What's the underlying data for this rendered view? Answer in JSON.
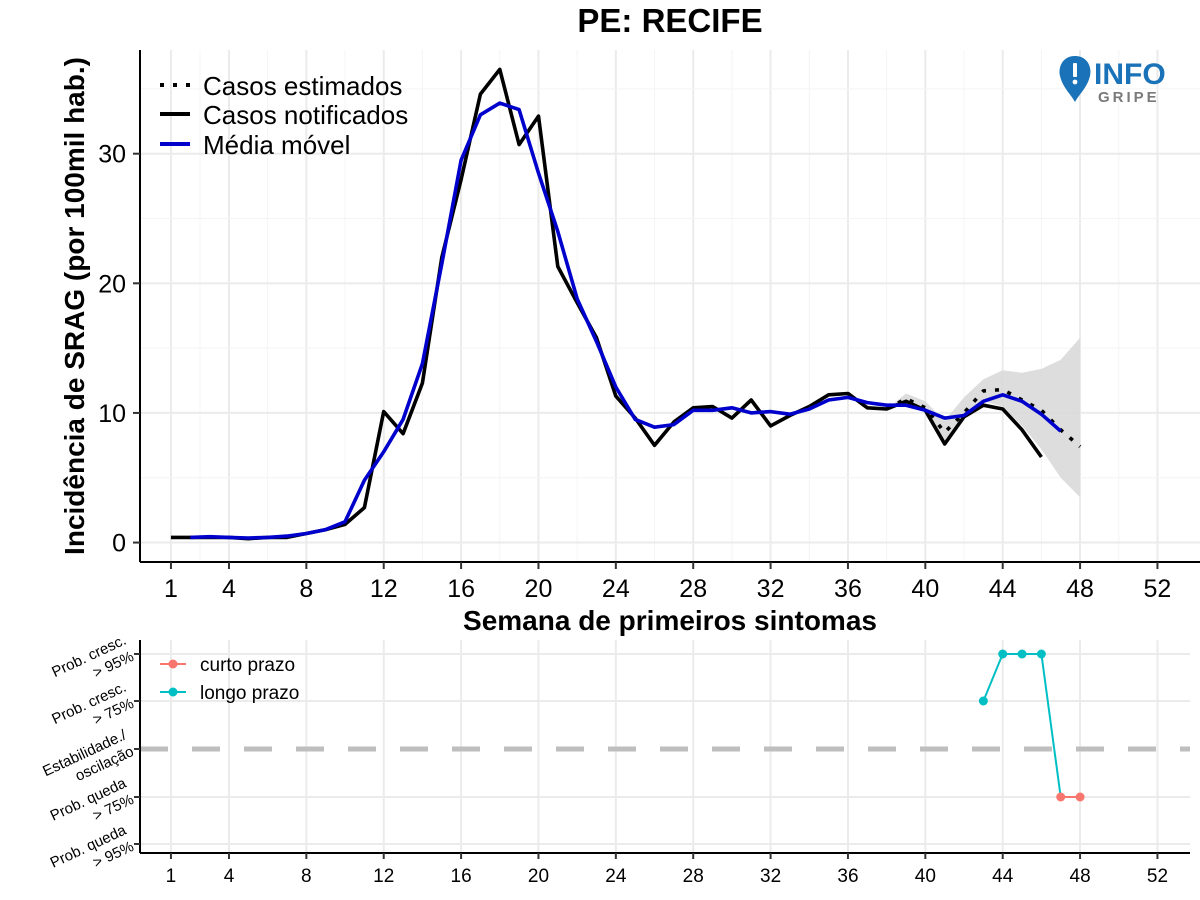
{
  "logo": {
    "info": "INFO",
    "gripe": "GRIPE",
    "colors": {
      "info": "#1a73b8",
      "gripe": "#7a7a7a"
    }
  },
  "chart_data": [
    {
      "type": "line",
      "title": "PE: RECIFE",
      "xlabel": "Semana de primeiros sintomas",
      "ylabel": "Incidência de SRAG (por 100mil hab.)",
      "xlim": [
        -0.6,
        54.2
      ],
      "ylim": [
        -1.5,
        38
      ],
      "x_ticks": [
        1,
        4,
        8,
        12,
        16,
        20,
        24,
        28,
        32,
        36,
        40,
        44,
        48,
        52
      ],
      "x_tick_labels": [
        "1",
        "4",
        "8",
        "12",
        "16",
        "20",
        "24",
        "28",
        "32",
        "36",
        "40",
        "44",
        "48",
        "52"
      ],
      "y_ticks": [
        0,
        10,
        20,
        30
      ],
      "y_tick_labels": [
        "0",
        "10",
        "20",
        "30"
      ],
      "grid": true,
      "legend_position": "top-left",
      "colors": {
        "notified": "#000000",
        "estimated": "#000000",
        "moving_average": "#0000cc",
        "band": "#d9d9d9",
        "grid": "#ebebeb"
      },
      "series": [
        {
          "name": "Casos notificados",
          "style": "solid",
          "x": [
            1,
            2,
            3,
            4,
            5,
            6,
            7,
            8,
            9,
            10,
            11,
            12,
            13,
            14,
            15,
            16,
            17,
            18,
            19,
            20,
            21,
            22,
            23,
            24,
            25,
            26,
            27,
            28,
            29,
            30,
            31,
            32,
            33,
            34,
            35,
            36,
            37,
            38,
            39,
            40,
            41,
            42,
            43,
            44,
            45,
            46
          ],
          "values": [
            0.4,
            0.4,
            0.4,
            0.4,
            0.3,
            0.4,
            0.4,
            0.7,
            1.0,
            1.4,
            2.7,
            10.1,
            8.4,
            12.3,
            22.0,
            28.0,
            34.6,
            36.5,
            30.7,
            32.9,
            21.3,
            18.5,
            15.8,
            11.3,
            9.6,
            7.5,
            9.3,
            10.4,
            10.5,
            9.6,
            11.0,
            9.0,
            9.8,
            10.5,
            11.4,
            11.5,
            10.4,
            10.3,
            10.9,
            10.2,
            7.6,
            9.7,
            10.6,
            10.3,
            8.7,
            6.6
          ]
        },
        {
          "name": "Casos estimados",
          "style": "dotted",
          "x": [
            38,
            39,
            40,
            41,
            42,
            43,
            44,
            45,
            46,
            47,
            48
          ],
          "values": [
            10.3,
            11.1,
            10.4,
            8.5,
            10.0,
            11.7,
            11.8,
            11.0,
            10.2,
            8.7,
            7.4
          ]
        },
        {
          "name": "Média móvel",
          "style": "solid",
          "x": [
            2,
            3,
            4,
            5,
            6,
            7,
            8,
            9,
            10,
            11,
            12,
            13,
            14,
            15,
            16,
            17,
            18,
            19,
            20,
            21,
            22,
            23,
            24,
            25,
            26,
            27,
            28,
            29,
            30,
            31,
            32,
            33,
            34,
            35,
            36,
            37,
            38,
            39,
            40,
            41,
            42,
            43,
            44,
            45,
            46,
            47
          ],
          "values": [
            0.4,
            0.45,
            0.4,
            0.35,
            0.4,
            0.5,
            0.7,
            1.0,
            1.6,
            4.8,
            7.0,
            9.5,
            13.8,
            21.5,
            29.5,
            33.0,
            33.9,
            33.4,
            28.5,
            24.0,
            18.8,
            15.5,
            12.0,
            9.5,
            8.9,
            9.1,
            10.2,
            10.2,
            10.4,
            10.0,
            10.1,
            9.9,
            10.3,
            11.0,
            11.2,
            10.8,
            10.6,
            10.6,
            10.2,
            9.6,
            9.8,
            10.9,
            11.4,
            10.9,
            9.9,
            8.6
          ]
        }
      ],
      "band": {
        "name": "Intervalo de confiança",
        "x": [
          38,
          39,
          40,
          41,
          42,
          43,
          44,
          45,
          46,
          47,
          48
        ],
        "lower": [
          10.3,
          10.8,
          10.2,
          7.6,
          9.8,
          10.9,
          10.5,
          9.0,
          7.2,
          5.0,
          3.5
        ],
        "upper": [
          10.3,
          11.5,
          10.9,
          9.4,
          11.2,
          12.6,
          13.3,
          13.1,
          13.4,
          14.1,
          15.8
        ]
      }
    },
    {
      "type": "line",
      "x_ticks": [
        1,
        4,
        8,
        12,
        16,
        20,
        24,
        28,
        32,
        36,
        40,
        44,
        48,
        52
      ],
      "x_tick_labels": [
        "1",
        "4",
        "8",
        "12",
        "16",
        "20",
        "24",
        "28",
        "32",
        "36",
        "40",
        "44",
        "48",
        "52"
      ],
      "categories": [
        {
          "lines": [
            "Prob. cresc.",
            "> 95%"
          ],
          "level": 2
        },
        {
          "lines": [
            "Prob. cresc.",
            "> 75%"
          ],
          "level": 1
        },
        {
          "lines": [
            "Estabilidade./",
            "oscilação"
          ],
          "level": 0
        },
        {
          "lines": [
            "Prob. queda",
            "> 75%"
          ],
          "level": -1
        },
        {
          "lines": [
            "Prob. queda",
            "> 95%"
          ],
          "level": -2
        }
      ],
      "series": [
        {
          "name": "curto prazo",
          "color": "#f8766d",
          "x": [
            47,
            48
          ],
          "values": [
            -1,
            -1
          ]
        },
        {
          "name": "longo prazo",
          "color": "#00bfc4",
          "x": [
            43,
            44,
            45,
            46,
            47
          ],
          "values": [
            1,
            2,
            2,
            2,
            -1
          ]
        }
      ],
      "grid": true,
      "legend_position": "top-left",
      "reference_line": {
        "level": 0,
        "style": "dashed",
        "color": "#bebebe"
      }
    }
  ]
}
